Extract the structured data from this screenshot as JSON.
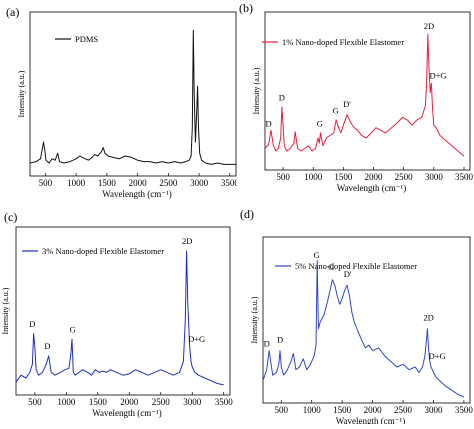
{
  "chart_data": [
    {
      "type": "line",
      "panel_label": "(a)",
      "xlabel": "Wavelength (cm⁻¹)",
      "ylabel": "Intensity (a.u.)",
      "xlim": [
        250,
        3600
      ],
      "xticks": [
        500,
        1000,
        1500,
        2000,
        2500,
        3000,
        3500
      ],
      "color": "#111111",
      "series": [
        {
          "name": "PDMS",
          "x": [
            250,
            350,
            420,
            470,
            490,
            510,
            560,
            610,
            660,
            700,
            730,
            800,
            900,
            1000,
            1060,
            1100,
            1150,
            1200,
            1260,
            1300,
            1350,
            1410,
            1440,
            1470,
            1520,
            1600,
            1700,
            1800,
            1900,
            2000,
            2100,
            2200,
            2300,
            2400,
            2500,
            2600,
            2700,
            2780,
            2840,
            2870,
            2890,
            2905,
            2920,
            2940,
            2960,
            2975,
            2990,
            3010,
            3040,
            3100,
            3200,
            3300,
            3400,
            3500,
            3600
          ],
          "y": [
            0.05,
            0.06,
            0.08,
            0.2,
            0.14,
            0.07,
            0.05,
            0.08,
            0.07,
            0.12,
            0.06,
            0.05,
            0.06,
            0.08,
            0.1,
            0.09,
            0.08,
            0.07,
            0.09,
            0.11,
            0.1,
            0.13,
            0.16,
            0.12,
            0.1,
            0.09,
            0.08,
            0.1,
            0.09,
            0.07,
            0.06,
            0.06,
            0.05,
            0.06,
            0.05,
            0.06,
            0.05,
            0.06,
            0.07,
            0.1,
            0.3,
            1.0,
            0.55,
            0.2,
            0.4,
            0.6,
            0.3,
            0.12,
            0.07,
            0.05,
            0.04,
            0.05,
            0.04,
            0.04,
            0.04
          ]
        }
      ],
      "annotations": []
    },
    {
      "type": "line",
      "panel_label": "(b)",
      "xlabel": "Wavelength (cm⁻¹)",
      "ylabel": "Intensity (a.u.)",
      "xlim": [
        200,
        3600
      ],
      "xticks": [
        500,
        1000,
        1500,
        2000,
        2500,
        3000,
        3500
      ],
      "color": "#e8203c",
      "series": [
        {
          "name": "1% Nano-doped Flexible Elastomer",
          "x": [
            200,
            260,
            300,
            340,
            380,
            420,
            460,
            480,
            500,
            520,
            560,
            620,
            680,
            700,
            740,
            800,
            860,
            920,
            980,
            1040,
            1080,
            1100,
            1120,
            1160,
            1220,
            1280,
            1340,
            1380,
            1420,
            1460,
            1500,
            1560,
            1620,
            1680,
            1740,
            1800,
            1880,
            1960,
            2040,
            2120,
            2200,
            2300,
            2400,
            2480,
            2560,
            2640,
            2720,
            2800,
            2860,
            2880,
            2900,
            2920,
            2940,
            2960,
            2980,
            3000,
            3040,
            3100,
            3200,
            3300,
            3400,
            3500
          ],
          "y": [
            0.12,
            0.15,
            0.26,
            0.14,
            0.1,
            0.12,
            0.2,
            0.44,
            0.3,
            0.14,
            0.1,
            0.12,
            0.16,
            0.25,
            0.12,
            0.1,
            0.12,
            0.14,
            0.1,
            0.12,
            0.2,
            0.16,
            0.24,
            0.14,
            0.2,
            0.22,
            0.24,
            0.34,
            0.28,
            0.24,
            0.3,
            0.38,
            0.32,
            0.28,
            0.26,
            0.22,
            0.2,
            0.24,
            0.28,
            0.26,
            0.24,
            0.28,
            0.32,
            0.36,
            0.34,
            0.3,
            0.34,
            0.36,
            0.45,
            0.62,
            1.0,
            0.74,
            0.55,
            0.62,
            0.42,
            0.3,
            0.28,
            0.22,
            0.18,
            0.14,
            0.1,
            0.06
          ]
        }
      ],
      "annotations": [
        {
          "text": "D",
          "x": 260,
          "y": 0.29
        },
        {
          "text": "D",
          "x": 480,
          "y": 0.49
        },
        {
          "text": "G",
          "x": 1110,
          "y": 0.29
        },
        {
          "text": "G",
          "x": 1370,
          "y": 0.39
        },
        {
          "text": "D'",
          "x": 1560,
          "y": 0.44
        },
        {
          "text": "2D",
          "x": 2920,
          "y": 1.04
        },
        {
          "text": "D+G",
          "x": 3070,
          "y": 0.66
        }
      ]
    },
    {
      "type": "line",
      "panel_label": "(c)",
      "xlabel": "Wavelength (cm⁻¹)",
      "ylabel": "Intensity (a.u.)",
      "xlim": [
        200,
        3600
      ],
      "xticks": [
        500,
        1000,
        1500,
        2000,
        2500,
        3000,
        3500
      ],
      "color": "#1f2fbf",
      "series": [
        {
          "name": "3% Nano-doped Flexible Elastomer",
          "x": [
            200,
            280,
            360,
            420,
            460,
            480,
            500,
            520,
            560,
            620,
            680,
            720,
            760,
            820,
            900,
            980,
            1040,
            1070,
            1090,
            1110,
            1140,
            1200,
            1260,
            1340,
            1400,
            1460,
            1520,
            1580,
            1640,
            1700,
            1800,
            1900,
            2000,
            2100,
            2200,
            2300,
            2400,
            2500,
            2600,
            2700,
            2800,
            2860,
            2890,
            2910,
            2930,
            2960,
            2980,
            3000,
            3040,
            3100,
            3200,
            3300,
            3400,
            3500
          ],
          "y": [
            0.05,
            0.1,
            0.08,
            0.12,
            0.18,
            0.4,
            0.3,
            0.14,
            0.1,
            0.12,
            0.18,
            0.24,
            0.12,
            0.1,
            0.12,
            0.14,
            0.15,
            0.25,
            0.36,
            0.12,
            0.1,
            0.12,
            0.14,
            0.12,
            0.1,
            0.14,
            0.12,
            0.13,
            0.12,
            0.14,
            0.12,
            0.1,
            0.11,
            0.14,
            0.12,
            0.1,
            0.12,
            0.14,
            0.12,
            0.1,
            0.12,
            0.2,
            0.5,
            1.0,
            0.62,
            0.3,
            0.2,
            0.16,
            0.12,
            0.1,
            0.08,
            0.06,
            0.04,
            0.03
          ]
        }
      ],
      "annotations": [
        {
          "text": "D",
          "x": 460,
          "y": 0.45
        },
        {
          "text": "D",
          "x": 700,
          "y": 0.29
        },
        {
          "text": "G",
          "x": 1100,
          "y": 0.41
        },
        {
          "text": "2D",
          "x": 2920,
          "y": 1.05
        },
        {
          "text": "D+G",
          "x": 3070,
          "y": 0.34
        }
      ]
    },
    {
      "type": "line",
      "panel_label": "(d)",
      "xlabel": "Wavelength (cm⁻¹)",
      "ylabel": "Intensity (a.u.)",
      "xlim": [
        200,
        3600
      ],
      "xticks": [
        500,
        1000,
        1500,
        2000,
        2500,
        3000,
        3500
      ],
      "color": "#2f46c8",
      "series": [
        {
          "name": "5% Nano-doped Flexible Elastomer",
          "x": [
            200,
            260,
            300,
            360,
            420,
            460,
            480,
            500,
            540,
            600,
            660,
            700,
            740,
            800,
            860,
            920,
            980,
            1040,
            1070,
            1090,
            1110,
            1140,
            1200,
            1260,
            1300,
            1340,
            1380,
            1420,
            1460,
            1500,
            1540,
            1580,
            1620,
            1660,
            1700,
            1760,
            1820,
            1880,
            1940,
            2000,
            2100,
            2200,
            2300,
            2400,
            2500,
            2600,
            2700,
            2760,
            2820,
            2860,
            2880,
            2900,
            2920,
            2940,
            2960,
            2980,
            3000,
            3050,
            3100,
            3200,
            3300,
            3400,
            3500
          ],
          "y": [
            0.12,
            0.2,
            0.34,
            0.16,
            0.18,
            0.24,
            0.34,
            0.22,
            0.16,
            0.2,
            0.26,
            0.32,
            0.2,
            0.22,
            0.28,
            0.2,
            0.24,
            0.3,
            0.38,
            1.0,
            0.5,
            0.55,
            0.6,
            0.7,
            0.78,
            0.86,
            0.82,
            0.74,
            0.68,
            0.72,
            0.78,
            0.82,
            0.74,
            0.62,
            0.55,
            0.48,
            0.42,
            0.36,
            0.38,
            0.34,
            0.36,
            0.3,
            0.26,
            0.22,
            0.24,
            0.2,
            0.22,
            0.18,
            0.22,
            0.3,
            0.4,
            0.5,
            0.35,
            0.26,
            0.22,
            0.2,
            0.18,
            0.14,
            0.12,
            0.08,
            0.05,
            0.02,
            0.0
          ]
        }
      ],
      "annotations": [
        {
          "text": "D",
          "x": 260,
          "y": 0.37
        },
        {
          "text": "D",
          "x": 480,
          "y": 0.4
        },
        {
          "text": "G",
          "x": 1080,
          "y": 1.02
        },
        {
          "text": "G",
          "x": 1320,
          "y": 0.93
        },
        {
          "text": "D'",
          "x": 1590,
          "y": 0.88
        },
        {
          "text": "2D",
          "x": 2920,
          "y": 0.56
        },
        {
          "text": "D+G",
          "x": 3060,
          "y": 0.28
        }
      ]
    }
  ]
}
